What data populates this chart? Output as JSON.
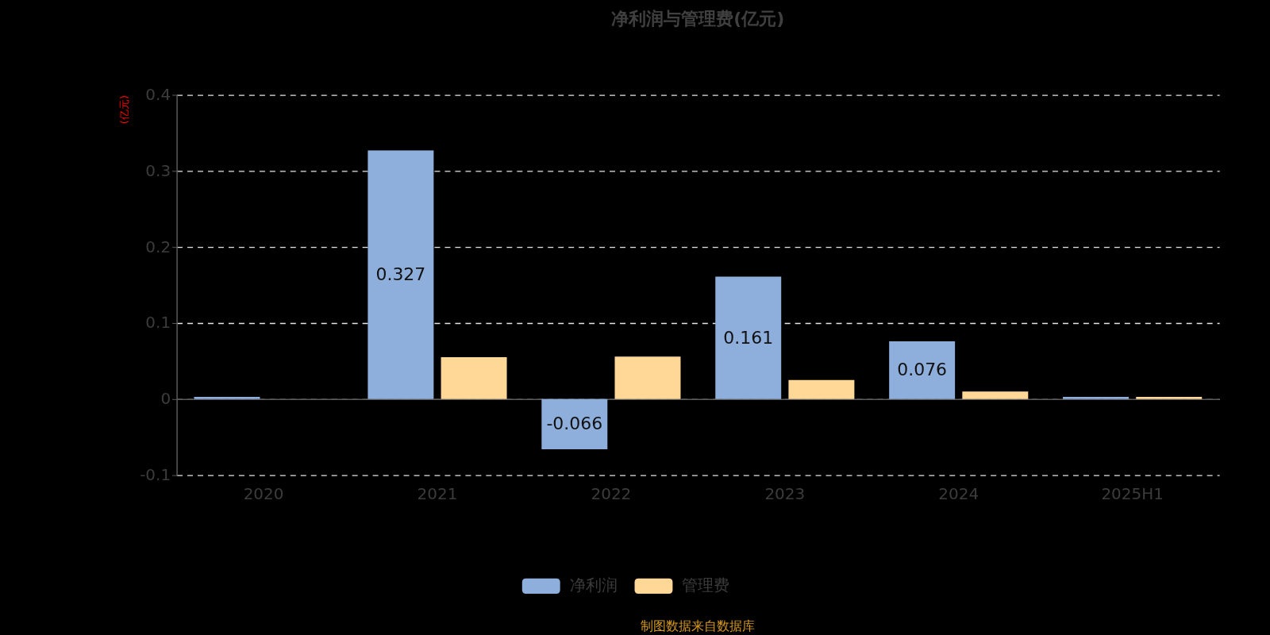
{
  "chart_data": {
    "type": "bar",
    "title": "净利润与管理费(亿元)",
    "ylabel": "(亿元)",
    "categories": [
      "2020",
      "2021",
      "2022",
      "2023",
      "2024",
      "2025H1"
    ],
    "series": [
      {
        "name": "净利润",
        "color": "#8eaedb",
        "values": [
          0.003,
          0.327,
          -0.066,
          0.161,
          0.076,
          0.003
        ],
        "value_labels": [
          null,
          "0.327",
          "-0.066",
          "0.161",
          "0.076",
          null
        ]
      },
      {
        "name": "管理费",
        "color": "#ffd897",
        "values": [
          null,
          0.055,
          0.056,
          0.025,
          0.01,
          0.003
        ]
      }
    ],
    "ylim": [
      -0.1,
      0.4
    ],
    "yticks": [
      -0.1,
      0,
      0.1,
      0.2,
      0.3,
      0.4
    ],
    "grid": "y",
    "legend": "bottom",
    "annotations": [
      "制图数据来自数据库"
    ]
  }
}
